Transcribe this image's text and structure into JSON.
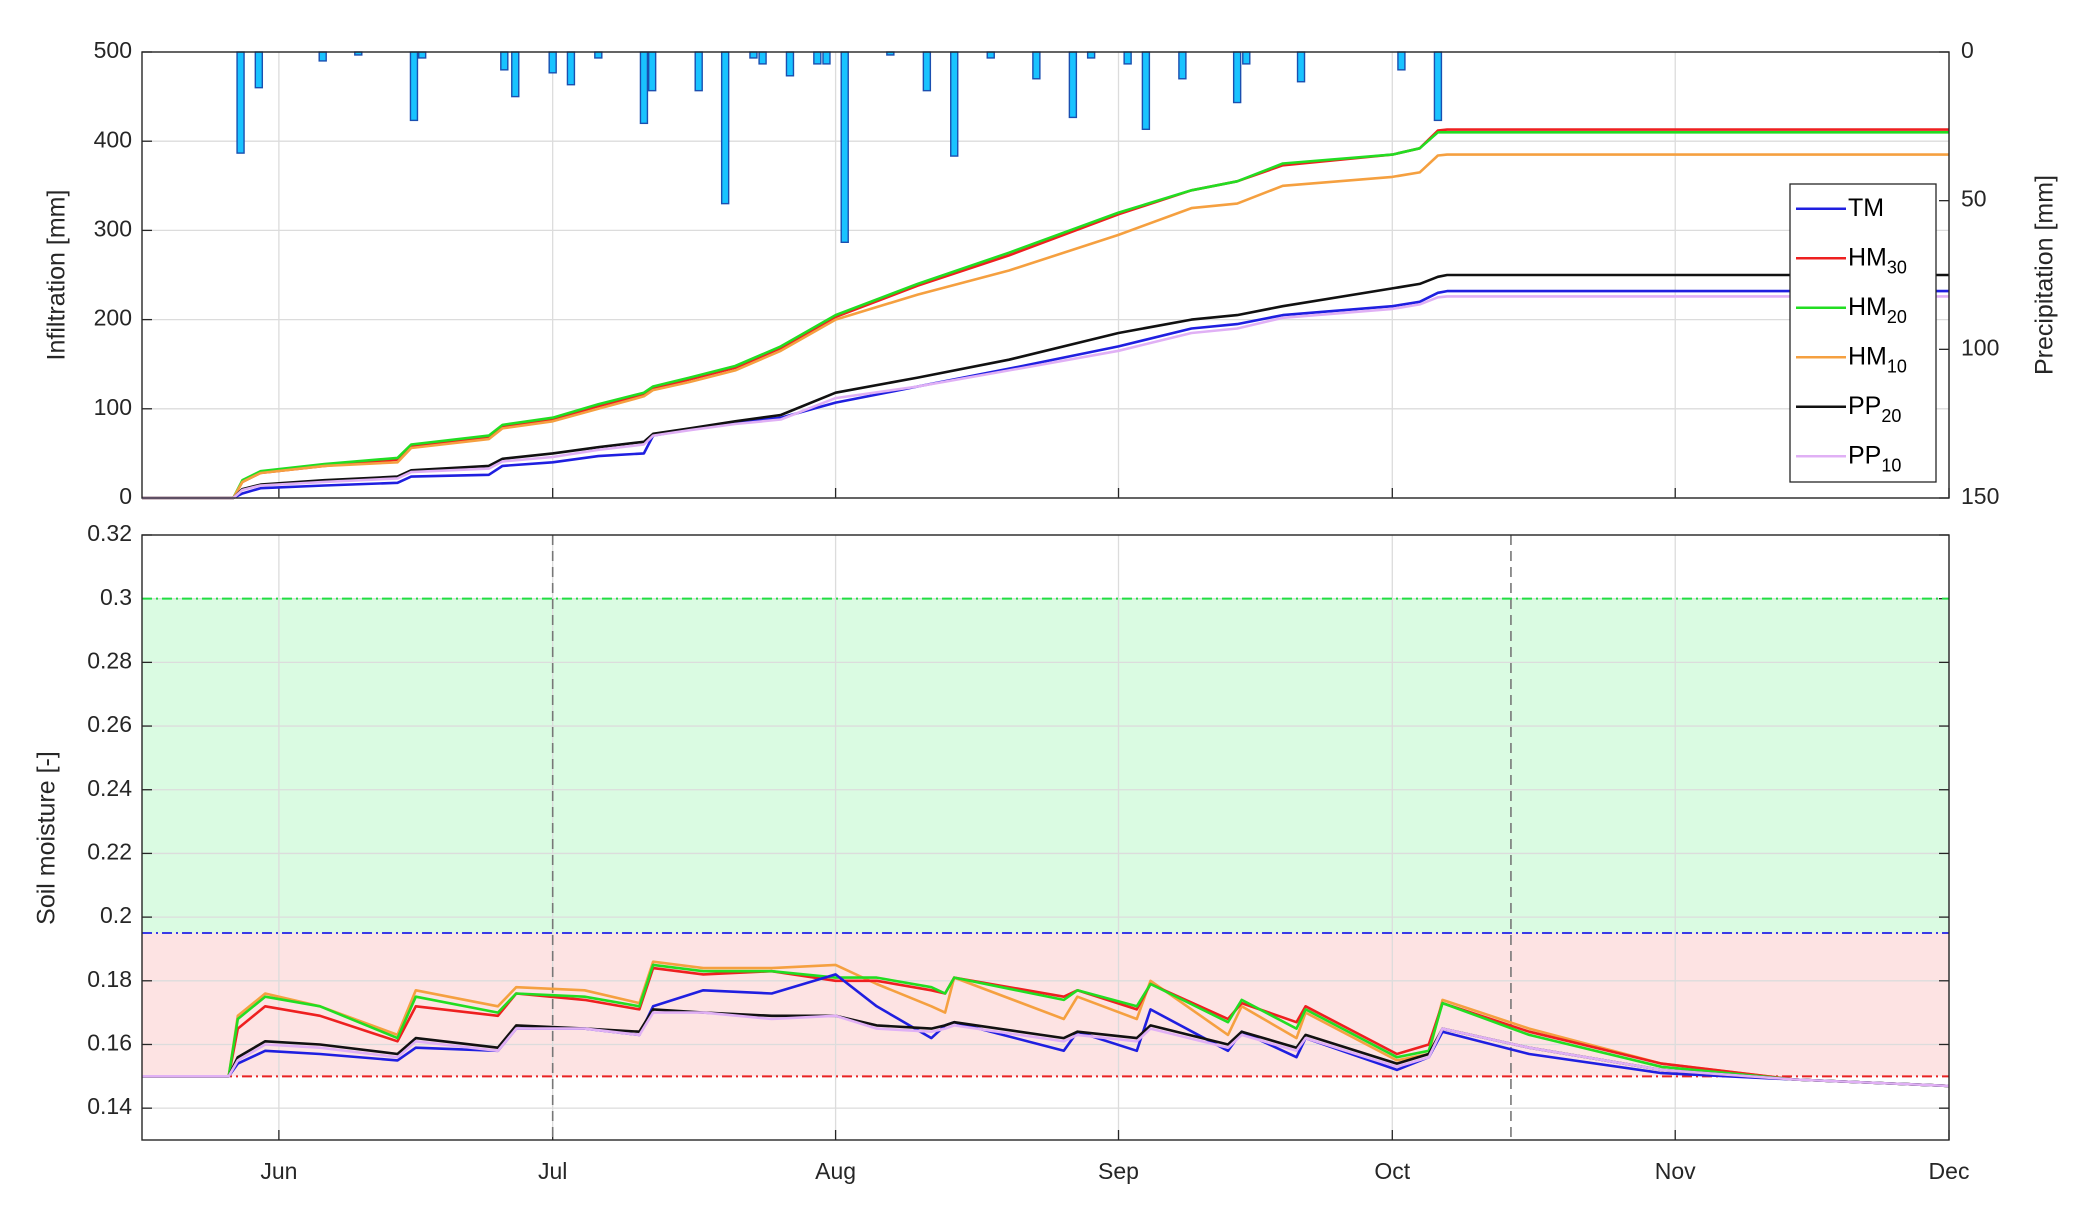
{
  "chart_data": [
    {
      "type": "line",
      "ylabel": "Infiltration [mm]",
      "y2label": "Precipitation [mm]",
      "xlim": [
        0,
        198
      ],
      "xticks": [
        15,
        45,
        76,
        107,
        137,
        168,
        198
      ],
      "ylim": [
        0,
        500
      ],
      "yticks": [
        0,
        100,
        200,
        300,
        400,
        500
      ],
      "y2lim": [
        0,
        150
      ],
      "y2ticks": [
        0,
        50,
        100,
        150
      ],
      "y2_reversed": true,
      "grid": true,
      "legend": "right",
      "x": [
        0,
        10,
        11,
        13,
        20,
        28,
        29.5,
        38,
        39.5,
        45,
        50,
        55,
        56,
        60,
        65,
        70,
        76,
        85,
        95,
        107,
        115,
        120,
        125,
        137,
        140,
        142,
        143,
        198
      ],
      "series": [
        {
          "name": "TM",
          "color": "#1f1fe0",
          "values": [
            0,
            0,
            5,
            11,
            14,
            17,
            24,
            26,
            36,
            40,
            47,
            50,
            70,
            77,
            85,
            90,
            107,
            125,
            145,
            170,
            190,
            195,
            205,
            215,
            220,
            230,
            232,
            232
          ]
        },
        {
          "name": "HM",
          "subscript": "30",
          "color": "#ee2020",
          "values": [
            0,
            0,
            18,
            28,
            36,
            43,
            58,
            68,
            80,
            88,
            103,
            116,
            123,
            133,
            146,
            168,
            203,
            238,
            272,
            318,
            345,
            355,
            373,
            385,
            392,
            412,
            413,
            413
          ]
        },
        {
          "name": "HM",
          "subscript": "20",
          "color": "#22dd22",
          "values": [
            0,
            0,
            20,
            30,
            38,
            45,
            60,
            70,
            82,
            90,
            105,
            118,
            125,
            135,
            148,
            170,
            205,
            240,
            275,
            320,
            345,
            355,
            375,
            385,
            392,
            410,
            410,
            410
          ]
        },
        {
          "name": "HM",
          "subscript": "10",
          "color": "#f5a040",
          "values": [
            0,
            0,
            18,
            28,
            36,
            40,
            56,
            66,
            78,
            86,
            100,
            114,
            121,
            130,
            143,
            165,
            200,
            228,
            255,
            295,
            325,
            330,
            350,
            360,
            365,
            384,
            385,
            385
          ]
        },
        {
          "name": "PP",
          "subscript": "20",
          "color": "#111111",
          "values": [
            0,
            0,
            10,
            15,
            20,
            24,
            31,
            36,
            44,
            50,
            57,
            63,
            72,
            78,
            86,
            93,
            118,
            135,
            155,
            185,
            200,
            205,
            215,
            235,
            240,
            248,
            250,
            250
          ]
        },
        {
          "name": "PP",
          "subscript": "10",
          "color": "#e0b0f5",
          "values": [
            0,
            0,
            9,
            14,
            18,
            22,
            29,
            33,
            41,
            46,
            54,
            60,
            70,
            76,
            83,
            88,
            112,
            125,
            143,
            165,
            185,
            190,
            202,
            212,
            217,
            225,
            226,
            226
          ]
        }
      ],
      "bars": {
        "axis": "y2",
        "color": "#19c3ff",
        "edgecolor": "#1a4fb0",
        "x": [
          10.8,
          12.8,
          19.8,
          23.7,
          29.8,
          30.7,
          39.7,
          40.9,
          45,
          47,
          50,
          55,
          55.9,
          61,
          63.9,
          67,
          68,
          71,
          74,
          75,
          77,
          82,
          86,
          89,
          93,
          98,
          102,
          104,
          108,
          110,
          114,
          120,
          121,
          127,
          138,
          142
        ],
        "values": [
          34,
          12,
          3,
          1,
          23,
          2,
          6,
          15,
          7,
          11,
          2,
          24,
          13,
          13,
          51,
          2,
          4,
          8,
          4,
          4,
          64,
          1,
          13,
          35,
          2,
          9,
          22,
          2,
          4,
          26,
          9,
          17,
          4,
          10,
          6,
          23
        ]
      }
    },
    {
      "type": "line",
      "ylabel": "Soil moisture [-]",
      "xlim": [
        0,
        198
      ],
      "xticks": [
        {
          "value": 15,
          "label": "Jun"
        },
        {
          "value": 45,
          "label": "Jul"
        },
        {
          "value": 76,
          "label": "Aug"
        },
        {
          "value": 107,
          "label": "Sep"
        },
        {
          "value": 137,
          "label": "Oct"
        },
        {
          "value": 168,
          "label": "Nov"
        },
        {
          "value": 198,
          "label": "Dec"
        }
      ],
      "ylim": [
        0.13,
        0.32
      ],
      "yticks": [
        0.14,
        0.16,
        0.18,
        0.2,
        0.22,
        0.24,
        0.26,
        0.28,
        0.3,
        0.32
      ],
      "grid": true,
      "bands": [
        {
          "from": 0.195,
          "to": 0.3,
          "color": "#dafbe2"
        },
        {
          "from": 0.15,
          "to": 0.195,
          "color": "#fde3e3"
        }
      ],
      "hlines": [
        {
          "value": 0.3,
          "color": "#22dd44"
        },
        {
          "value": 0.195,
          "color": "#3a3ae6"
        },
        {
          "value": 0.15,
          "color": "#e82222"
        }
      ],
      "vlines": [
        45,
        150
      ],
      "x": [
        0,
        9.5,
        10.5,
        13.5,
        19.5,
        28,
        30,
        39,
        41,
        48.5,
        54.5,
        56,
        61.5,
        69,
        76,
        80.5,
        86.5,
        88,
        89,
        101,
        102.5,
        109,
        110.5,
        119,
        120.5,
        126.5,
        127.5,
        137.5,
        141,
        142.5,
        152,
        166.5,
        181,
        198
      ],
      "series": [
        {
          "color": "#f5a040",
          "values": [
            0.15,
            0.15,
            0.169,
            0.176,
            0.172,
            0.163,
            0.177,
            0.172,
            0.178,
            0.177,
            0.173,
            0.186,
            0.184,
            0.184,
            0.185,
            0.179,
            0.172,
            0.17,
            0.181,
            0.168,
            0.175,
            0.168,
            0.18,
            0.163,
            0.172,
            0.162,
            0.17,
            0.155,
            0.157,
            0.174,
            0.165,
            0.154,
            0.149,
            0.147
          ]
        },
        {
          "color": "#ee2020",
          "values": [
            0.15,
            0.15,
            0.165,
            0.172,
            0.169,
            0.161,
            0.172,
            0.169,
            0.176,
            0.174,
            0.171,
            0.184,
            0.182,
            0.183,
            0.18,
            0.18,
            0.177,
            0.176,
            0.181,
            0.175,
            0.177,
            0.171,
            0.179,
            0.168,
            0.173,
            0.167,
            0.172,
            0.157,
            0.16,
            0.173,
            0.164,
            0.154,
            0.149,
            0.147
          ]
        },
        {
          "color": "#22dd22",
          "values": [
            0.15,
            0.15,
            0.168,
            0.175,
            0.172,
            0.162,
            0.175,
            0.17,
            0.176,
            0.175,
            0.172,
            0.185,
            0.183,
            0.183,
            0.181,
            0.181,
            0.178,
            0.176,
            0.181,
            0.174,
            0.177,
            0.172,
            0.179,
            0.167,
            0.174,
            0.165,
            0.171,
            0.156,
            0.158,
            0.173,
            0.163,
            0.153,
            0.149,
            0.147
          ]
        },
        {
          "color": "#1f1fe0",
          "values": [
            0.15,
            0.15,
            0.154,
            0.158,
            0.157,
            0.155,
            0.159,
            0.158,
            0.165,
            0.165,
            0.163,
            0.172,
            0.177,
            0.176,
            0.182,
            0.172,
            0.162,
            0.166,
            0.167,
            0.158,
            0.164,
            0.158,
            0.171,
            0.158,
            0.164,
            0.156,
            0.162,
            0.152,
            0.156,
            0.164,
            0.157,
            0.151,
            0.149,
            0.147
          ]
        },
        {
          "color": "#111111",
          "values": [
            0.15,
            0.15,
            0.156,
            0.161,
            0.16,
            0.157,
            0.162,
            0.159,
            0.166,
            0.165,
            0.164,
            0.171,
            0.17,
            0.169,
            0.169,
            0.166,
            0.165,
            0.166,
            0.167,
            0.162,
            0.164,
            0.162,
            0.166,
            0.16,
            0.164,
            0.159,
            0.163,
            0.154,
            0.157,
            0.165,
            0.159,
            0.152,
            0.149,
            0.147
          ]
        },
        {
          "color": "#e0b0f5",
          "values": [
            0.15,
            0.15,
            0.155,
            0.16,
            0.159,
            0.156,
            0.161,
            0.158,
            0.165,
            0.165,
            0.163,
            0.17,
            0.17,
            0.168,
            0.169,
            0.165,
            0.164,
            0.165,
            0.166,
            0.161,
            0.163,
            0.161,
            0.165,
            0.159,
            0.163,
            0.158,
            0.162,
            0.153,
            0.156,
            0.165,
            0.159,
            0.152,
            0.149,
            0.147
          ]
        }
      ]
    }
  ]
}
